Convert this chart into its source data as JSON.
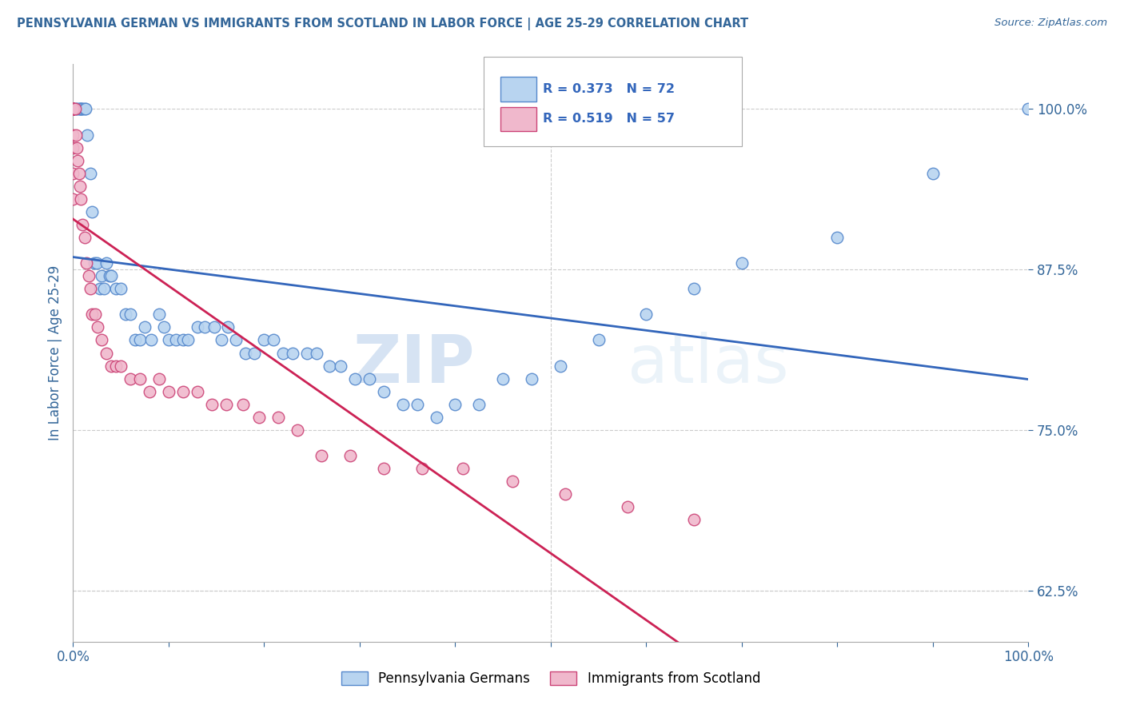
{
  "title": "PENNSYLVANIA GERMAN VS IMMIGRANTS FROM SCOTLAND IN LABOR FORCE | AGE 25-29 CORRELATION CHART",
  "source": "Source: ZipAtlas.com",
  "ylabel": "In Labor Force | Age 25-29",
  "xlim": [
    0.0,
    1.0
  ],
  "ylim": [
    0.585,
    1.035
  ],
  "ytick_labels": [
    "62.5%",
    "75.0%",
    "87.5%",
    "100.0%"
  ],
  "ytick_values": [
    0.625,
    0.75,
    0.875,
    1.0
  ],
  "xtick_labels": [
    "0.0%",
    "100.0%"
  ],
  "xtick_values": [
    0.0,
    1.0
  ],
  "blue_R": 0.373,
  "blue_N": 72,
  "pink_R": 0.519,
  "pink_N": 57,
  "blue_color": "#b8d4f0",
  "pink_color": "#f0b8cc",
  "blue_edge_color": "#5588cc",
  "pink_edge_color": "#cc4477",
  "blue_line_color": "#3366bb",
  "pink_line_color": "#cc2255",
  "legend_label_blue": "Pennsylvania Germans",
  "legend_label_pink": "Immigrants from Scotland",
  "watermark_zip": "ZIP",
  "watermark_atlas": "atlas",
  "blue_scatter_x": [
    0.0,
    0.0,
    0.0,
    0.0,
    0.003,
    0.004,
    0.006,
    0.007,
    0.008,
    0.009,
    0.01,
    0.012,
    0.013,
    0.015,
    0.018,
    0.02,
    0.022,
    0.025,
    0.028,
    0.03,
    0.032,
    0.035,
    0.038,
    0.04,
    0.045,
    0.05,
    0.055,
    0.06,
    0.065,
    0.07,
    0.075,
    0.082,
    0.09,
    0.095,
    0.1,
    0.108,
    0.115,
    0.12,
    0.13,
    0.138,
    0.148,
    0.155,
    0.162,
    0.17,
    0.18,
    0.19,
    0.2,
    0.21,
    0.22,
    0.23,
    0.245,
    0.255,
    0.268,
    0.28,
    0.295,
    0.31,
    0.325,
    0.345,
    0.36,
    0.38,
    0.4,
    0.425,
    0.45,
    0.48,
    0.51,
    0.55,
    0.6,
    0.65,
    0.7,
    0.8,
    0.9,
    1.0
  ],
  "blue_scatter_y": [
    1.0,
    1.0,
    1.0,
    1.0,
    1.0,
    1.0,
    1.0,
    1.0,
    1.0,
    1.0,
    1.0,
    1.0,
    1.0,
    0.98,
    0.95,
    0.92,
    0.88,
    0.88,
    0.86,
    0.87,
    0.86,
    0.88,
    0.87,
    0.87,
    0.86,
    0.86,
    0.84,
    0.84,
    0.82,
    0.82,
    0.83,
    0.82,
    0.84,
    0.83,
    0.82,
    0.82,
    0.82,
    0.82,
    0.83,
    0.83,
    0.83,
    0.82,
    0.83,
    0.82,
    0.81,
    0.81,
    0.82,
    0.82,
    0.81,
    0.81,
    0.81,
    0.81,
    0.8,
    0.8,
    0.79,
    0.79,
    0.78,
    0.77,
    0.77,
    0.76,
    0.77,
    0.77,
    0.79,
    0.79,
    0.8,
    0.82,
    0.84,
    0.86,
    0.88,
    0.9,
    0.95,
    1.0
  ],
  "pink_scatter_x": [
    0.0,
    0.0,
    0.0,
    0.0,
    0.0,
    0.0,
    0.0,
    0.0,
    0.0,
    0.0,
    0.0,
    0.0,
    0.0,
    0.0,
    0.0,
    0.002,
    0.003,
    0.004,
    0.005,
    0.006,
    0.007,
    0.008,
    0.01,
    0.012,
    0.014,
    0.016,
    0.018,
    0.02,
    0.023,
    0.026,
    0.03,
    0.035,
    0.04,
    0.045,
    0.05,
    0.06,
    0.07,
    0.08,
    0.09,
    0.1,
    0.115,
    0.13,
    0.145,
    0.16,
    0.178,
    0.195,
    0.215,
    0.235,
    0.26,
    0.29,
    0.325,
    0.365,
    0.408,
    0.46,
    0.515,
    0.58,
    0.65
  ],
  "pink_scatter_y": [
    1.0,
    1.0,
    1.0,
    1.0,
    1.0,
    1.0,
    1.0,
    1.0,
    1.0,
    1.0,
    1.0,
    0.98,
    0.97,
    0.95,
    0.93,
    1.0,
    0.98,
    0.97,
    0.96,
    0.95,
    0.94,
    0.93,
    0.91,
    0.9,
    0.88,
    0.87,
    0.86,
    0.84,
    0.84,
    0.83,
    0.82,
    0.81,
    0.8,
    0.8,
    0.8,
    0.79,
    0.79,
    0.78,
    0.79,
    0.78,
    0.78,
    0.78,
    0.77,
    0.77,
    0.77,
    0.76,
    0.76,
    0.75,
    0.73,
    0.73,
    0.72,
    0.72,
    0.72,
    0.71,
    0.7,
    0.69,
    0.68
  ],
  "background_color": "#ffffff",
  "grid_color": "#cccccc",
  "title_color": "#336699",
  "source_color": "#336699",
  "axis_label_color": "#336699",
  "tick_color": "#336699"
}
